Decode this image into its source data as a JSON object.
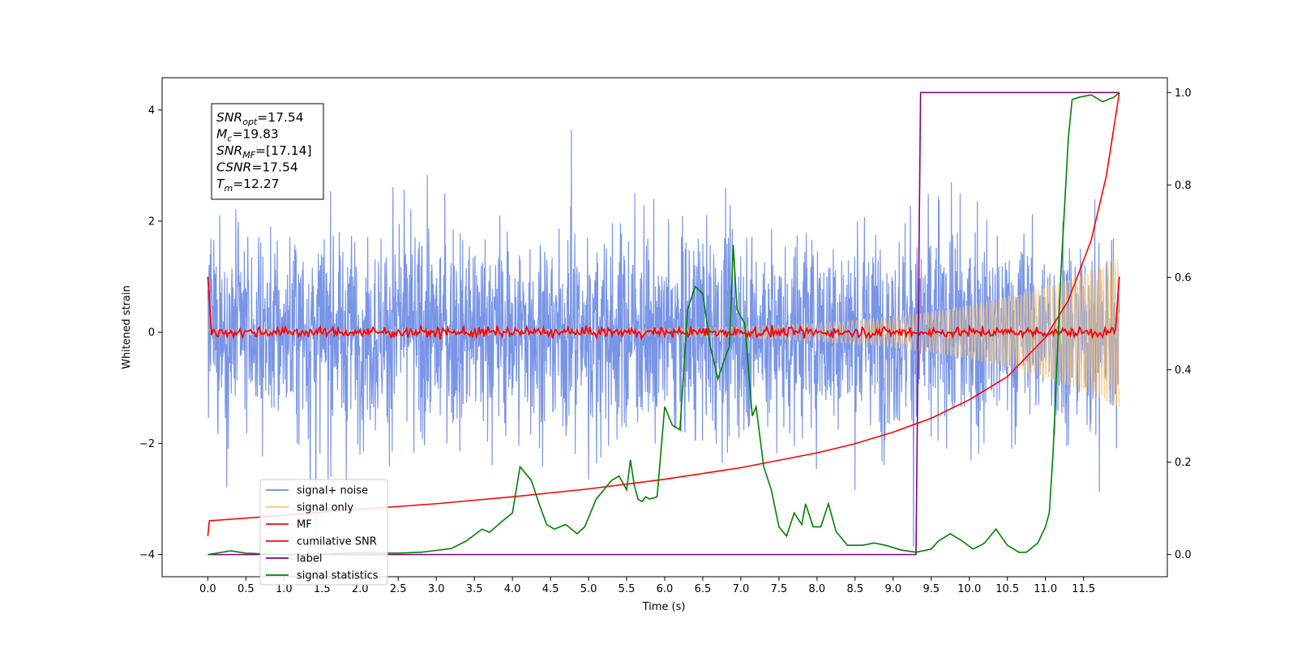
{
  "chart_data": {
    "type": "line",
    "xlabel": "Time (s)",
    "ylabel": "Whitened strain",
    "xlim": [
      -0.6,
      12.6
    ],
    "ylim": [
      -4.4,
      4.58
    ],
    "y2lim": [
      -0.048,
      1.032
    ],
    "x_ticks": [
      "0.0",
      "0.5",
      "1.0",
      "1.5",
      "2.0",
      "2.5",
      "3.0",
      "3.5",
      "4.0",
      "4.5",
      "5.0",
      "5.5",
      "6.0",
      "6.5",
      "7.0",
      "7.5",
      "8.0",
      "8.5",
      "9.0",
      "9.5",
      "10.0",
      "10.5",
      "11.0",
      "11.5"
    ],
    "y_ticks": [
      "−4",
      "−2",
      "0",
      "2",
      "4"
    ],
    "y2_ticks": [
      "0.0",
      "0.2",
      "0.4",
      "0.6",
      "0.8",
      "1.0"
    ],
    "grid": false,
    "legend_position": "lower-left",
    "annotation": {
      "lines": [
        {
          "sym": "SNR",
          "sub": "opt",
          "value": "=17.54"
        },
        {
          "sym": "M",
          "sub": "c",
          "value": "=19.83"
        },
        {
          "sym": "SNR",
          "sub": "MF",
          "value": "=[17.14]"
        },
        {
          "sym": "CSNR",
          "sub": "",
          "value": "=17.54"
        },
        {
          "sym": "T",
          "sub": "m",
          "value": "=12.27"
        }
      ]
    },
    "series": [
      {
        "name": "signal+ noise",
        "color": "#6a8ae6",
        "axis": "left",
        "kind": "noise_band",
        "duration": 11.97,
        "noise_sigma": 0.9,
        "y_min": -4.0,
        "y_max": 4.02
      },
      {
        "name": "signal only",
        "color": "#f5c77e",
        "axis": "left",
        "kind": "chirp",
        "duration": 11.97,
        "start_amplitude": 0.05,
        "end_amplitude": 1.35
      },
      {
        "name": "MF",
        "color": "#ff0000",
        "axis": "left",
        "kind": "mf_trace",
        "x": [
          0.0,
          0.05,
          11.92,
          11.97
        ],
        "y": [
          1.0,
          -0.05,
          0.05,
          1.0
        ]
      },
      {
        "name": "cumilative SNR",
        "color": "#ff0000",
        "axis": "right",
        "x": [
          0.0,
          0.02,
          1.0,
          2.0,
          3.0,
          4.0,
          5.0,
          6.0,
          7.0,
          8.0,
          8.5,
          9.0,
          9.5,
          10.0,
          10.5,
          11.0,
          11.3,
          11.6,
          11.8,
          11.97
        ],
        "y": [
          0.04,
          0.073,
          0.085,
          0.098,
          0.11,
          0.125,
          0.142,
          0.163,
          0.188,
          0.22,
          0.24,
          0.265,
          0.295,
          0.335,
          0.385,
          0.47,
          0.55,
          0.68,
          0.82,
          1.0
        ]
      },
      {
        "name": "label",
        "color": "#800080",
        "axis": "right",
        "x": [
          0.0,
          9.3,
          9.36,
          11.97
        ],
        "y": [
          0.0,
          0.0,
          1.0,
          1.0
        ]
      },
      {
        "name": "signal statistics",
        "color": "#008000",
        "axis": "right",
        "x": [
          0.0,
          0.3,
          0.5,
          1.0,
          1.5,
          2.0,
          2.5,
          2.8,
          3.0,
          3.2,
          3.4,
          3.6,
          3.7,
          3.85,
          4.0,
          4.1,
          4.2,
          4.25,
          4.35,
          4.45,
          4.55,
          4.7,
          4.85,
          4.95,
          5.1,
          5.2,
          5.3,
          5.4,
          5.5,
          5.55,
          5.6,
          5.65,
          5.7,
          5.75,
          5.8,
          5.9,
          6.0,
          6.1,
          6.2,
          6.3,
          6.4,
          6.5,
          6.6,
          6.7,
          6.8,
          6.85,
          6.9,
          6.95,
          7.05,
          7.15,
          7.2,
          7.3,
          7.4,
          7.5,
          7.6,
          7.7,
          7.8,
          7.85,
          7.95,
          8.05,
          8.15,
          8.25,
          8.4,
          8.6,
          8.75,
          8.9,
          9.1,
          9.3,
          9.5,
          9.6,
          9.75,
          9.9,
          10.05,
          10.15,
          10.2,
          10.35,
          10.5,
          10.65,
          10.75,
          10.9,
          11.0,
          11.05,
          11.1,
          11.2,
          11.3,
          11.35,
          11.45,
          11.6,
          11.75,
          11.9,
          11.97
        ],
        "y": [
          0.0,
          0.008,
          0.003,
          0.0,
          0.001,
          0.004,
          0.003,
          0.005,
          0.009,
          0.013,
          0.03,
          0.055,
          0.048,
          0.07,
          0.09,
          0.19,
          0.17,
          0.16,
          0.11,
          0.065,
          0.055,
          0.065,
          0.045,
          0.06,
          0.12,
          0.14,
          0.16,
          0.17,
          0.14,
          0.205,
          0.15,
          0.12,
          0.115,
          0.125,
          0.12,
          0.125,
          0.32,
          0.28,
          0.27,
          0.53,
          0.58,
          0.565,
          0.45,
          0.38,
          0.43,
          0.45,
          0.67,
          0.53,
          0.5,
          0.3,
          0.32,
          0.19,
          0.14,
          0.06,
          0.04,
          0.09,
          0.065,
          0.11,
          0.06,
          0.06,
          0.11,
          0.05,
          0.02,
          0.02,
          0.025,
          0.02,
          0.01,
          0.005,
          0.012,
          0.03,
          0.045,
          0.03,
          0.012,
          0.02,
          0.025,
          0.055,
          0.02,
          0.005,
          0.005,
          0.025,
          0.06,
          0.09,
          0.22,
          0.6,
          0.9,
          0.985,
          0.99,
          0.995,
          0.98,
          0.99,
          1.0
        ]
      }
    ]
  }
}
